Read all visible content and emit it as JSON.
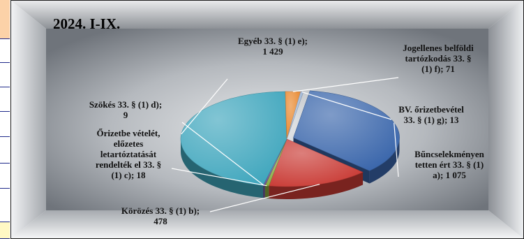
{
  "chart_data": {
    "type": "pie",
    "title": "2024. I-IX.",
    "categories": [
      "Bűncselekményen tetten ért 33. § (1) a)",
      "Körözés 33. § (1) b)",
      "Őrizetbe vételét, előzetes letartóztatását rendelték el 33. § (1) c)",
      "Szökés 33. § (1) d)",
      "Egyéb 33. § (1) e)",
      "Jogellenes belföldi tartózkodás 33. § (1) f)",
      "BV. őrizetbevétel 33. § (1) g)"
    ],
    "values": [
      1075,
      478,
      18,
      9,
      1429,
      71,
      13
    ],
    "data_labels": [
      [
        "Bűncselekményen",
        "tetten ért 33. § (1)",
        "a); 1 075"
      ],
      [
        "Körözés 33. § (1) b);",
        "478"
      ],
      [
        "Őrizetbe vételét,",
        "előzetes",
        "letartóztatását",
        "rendelték el 33. §",
        "(1) c); 18"
      ],
      [
        "Szökés 33. § (1) d);",
        "9"
      ],
      [
        "Egyéb 33. § (1) e);",
        "1 429"
      ],
      [
        "Jogellenes belföldi",
        "tartózkodás 33. §",
        "(1) f); 71"
      ],
      [
        "BV. őrizetbevétel",
        "33. § (1) g); 13"
      ]
    ],
    "colors": [
      "#3a66ab",
      "#c93a34",
      "#86a83c",
      "#6a4f93",
      "#3fa6bd",
      "#e8862b",
      "#9fb6d6"
    ],
    "legend": "none",
    "grid": false
  },
  "side_strip": {
    "colors": [
      "#fcd2a8",
      "#ffffff",
      "#ffffff",
      "#ffffff",
      "#ffffff",
      "#ffffff",
      "#ffffff",
      "#ffffff",
      "#fff8c4"
    ]
  }
}
